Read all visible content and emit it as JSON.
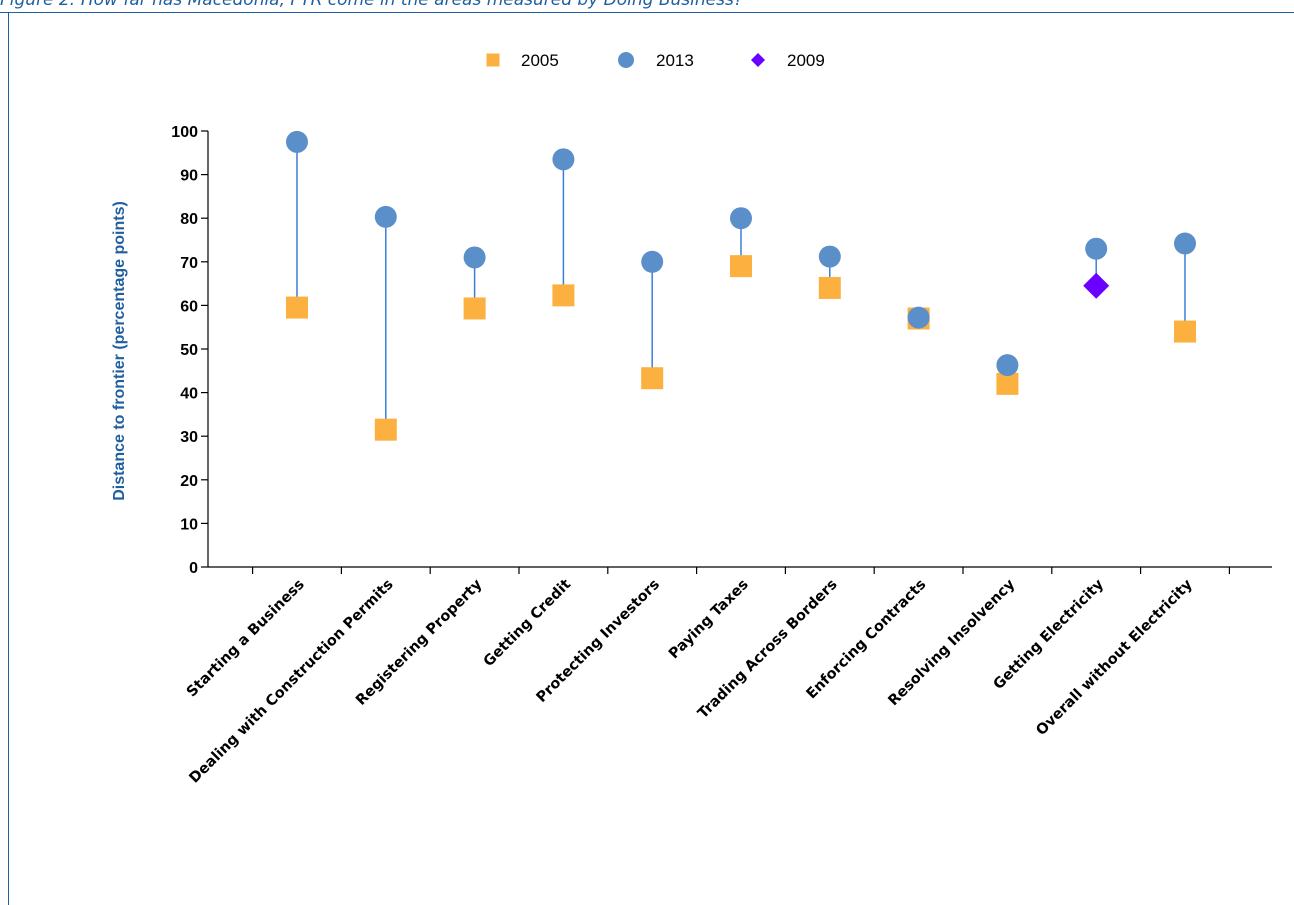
{
  "caption": "Figure 2: How far has Macedonia, FYR come in the areas measured by Doing Business?",
  "colors": {
    "series_2005": "#fbb040",
    "series_2013": "#5b8fc9",
    "series_2009": "#6a00ff",
    "connector": "#3b7dd8",
    "axis_label": "#1f5f9f"
  },
  "chart_data": {
    "type": "scatter",
    "title": "",
    "xlabel": "",
    "ylabel": "Distance to frontier (percentage points)",
    "ylim": [
      0,
      100
    ],
    "yticks": [
      0,
      10,
      20,
      30,
      40,
      50,
      60,
      70,
      80,
      90,
      100
    ],
    "grid": false,
    "legend_position": "top-center",
    "categories": [
      "Starting a Business",
      "Dealing with Construction Permits",
      "Registering Property",
      "Getting Credit",
      "Protecting Investors",
      "Paying Taxes",
      "Trading Across Borders",
      "Enforcing Contracts",
      "Resolving Insolvency",
      "Getting Electricity",
      "Overall without Electricity"
    ],
    "series": [
      {
        "name": "2005",
        "marker": "square",
        "values": [
          59.5,
          31.5,
          59.3,
          62.3,
          43.3,
          69.0,
          64.0,
          57.0,
          42.0,
          null,
          54.0
        ]
      },
      {
        "name": "2013",
        "marker": "circle",
        "values": [
          97.5,
          80.3,
          71.0,
          93.5,
          70.0,
          80.0,
          71.2,
          57.2,
          46.3,
          73.0,
          74.2
        ]
      },
      {
        "name": "2009",
        "marker": "diamond",
        "values": [
          null,
          null,
          null,
          null,
          null,
          null,
          null,
          null,
          null,
          64.5,
          null
        ]
      }
    ],
    "legend_order": [
      0,
      1,
      2
    ]
  }
}
